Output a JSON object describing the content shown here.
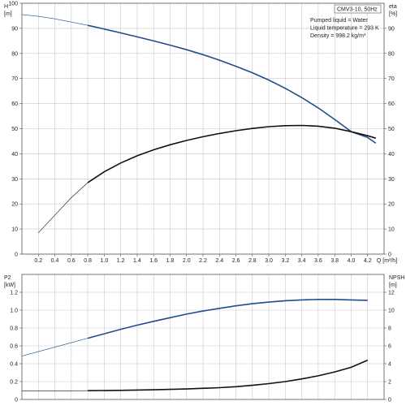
{
  "chart_data": [
    {
      "type": "line",
      "title": "",
      "xlabel": "Q [m³/h]",
      "ylabel": "H\n[m]",
      "ylabel_right": "eta\n[%]",
      "xlim": [
        0,
        4.4
      ],
      "ylim": [
        0,
        100
      ],
      "ylim_right": [
        0,
        100
      ],
      "x_ticks": [
        "0.2",
        "0.4",
        "0.6",
        "0.8",
        "1.0",
        "1.2",
        "1.4",
        "1.6",
        "1.8",
        "2.0",
        "2.2",
        "2.4",
        "2.6",
        "2.8",
        "3.0",
        "3.2",
        "3.4",
        "3.6",
        "3.8",
        "4.0",
        "4.2"
      ],
      "y_ticks": [
        "0",
        "10",
        "20",
        "30",
        "40",
        "50",
        "60",
        "70",
        "80",
        "90",
        "100"
      ],
      "y_ticks_right": [
        "0",
        "10",
        "20",
        "30",
        "40",
        "50",
        "60",
        "70",
        "80",
        "90"
      ],
      "grid": true,
      "info_box": {
        "title": "CMV3-10, 50Hz",
        "lines": [
          "Pumped liquid = Water",
          "Liquid temperature = 293 K",
          "Density = 998.2 kg/m³"
        ]
      },
      "series": [
        {
          "id": "H",
          "axis": "left",
          "color": "#1f4e8c",
          "x": [
            0.0,
            0.2,
            0.4,
            0.6,
            0.8,
            1.0,
            1.2,
            1.4,
            1.6,
            1.8,
            2.0,
            2.2,
            2.4,
            2.6,
            2.8,
            3.0,
            3.2,
            3.4,
            3.6,
            3.8,
            4.0,
            4.2,
            4.3
          ],
          "y": [
            95.5,
            94.8,
            93.8,
            92.5,
            91.2,
            89.7,
            88.2,
            86.6,
            85.0,
            83.3,
            81.5,
            79.5,
            77.3,
            74.9,
            72.3,
            69.4,
            66.1,
            62.4,
            58.3,
            53.7,
            48.8,
            46.5,
            44.2
          ],
          "thin_until_x": 0.8
        },
        {
          "id": "eta",
          "axis": "right",
          "color": "#111111",
          "x": [
            0.2,
            0.4,
            0.6,
            0.8,
            1.0,
            1.2,
            1.4,
            1.6,
            1.8,
            2.0,
            2.2,
            2.4,
            2.6,
            2.8,
            3.0,
            3.2,
            3.4,
            3.6,
            3.8,
            4.0,
            4.2,
            4.3
          ],
          "y": [
            8.5,
            15.5,
            22.5,
            28.5,
            32.8,
            36.3,
            39.2,
            41.6,
            43.6,
            45.3,
            46.8,
            48.1,
            49.2,
            50.1,
            50.8,
            51.2,
            51.3,
            51.0,
            50.2,
            48.8,
            47.2,
            46.2
          ],
          "thin_until_x": 0.8
        }
      ]
    },
    {
      "type": "line",
      "title": "",
      "xlabel": "",
      "ylabel": "P2\n[kW]",
      "ylabel_right": "NPSH\n[m]",
      "xlim": [
        0,
        4.4
      ],
      "ylim": [
        0,
        1.4
      ],
      "ylim_right": [
        0,
        14
      ],
      "y_ticks": [
        "0",
        "0.2",
        "0.4",
        "0.6",
        "0.8",
        "1.0",
        "1.2"
      ],
      "y_ticks_right": [
        "0",
        "2",
        "4",
        "6",
        "8",
        "10",
        "12"
      ],
      "grid": true,
      "series": [
        {
          "id": "P2",
          "axis": "left",
          "color": "#1f4e8c",
          "x": [
            0.0,
            0.2,
            0.4,
            0.6,
            0.8,
            1.0,
            1.2,
            1.4,
            1.6,
            1.8,
            2.0,
            2.2,
            2.4,
            2.6,
            2.8,
            3.0,
            3.2,
            3.4,
            3.6,
            3.8,
            4.0,
            4.2
          ],
          "y": [
            0.485,
            0.535,
            0.585,
            0.635,
            0.685,
            0.735,
            0.785,
            0.832,
            0.875,
            0.915,
            0.955,
            0.99,
            1.02,
            1.048,
            1.072,
            1.09,
            1.105,
            1.115,
            1.12,
            1.12,
            1.115,
            1.11
          ],
          "thin_until_x": 0.8
        },
        {
          "id": "NPSH",
          "axis": "right",
          "color": "#111111",
          "x": [
            0.0,
            0.4,
            0.8,
            1.2,
            1.6,
            2.0,
            2.4,
            2.6,
            2.8,
            3.0,
            3.2,
            3.4,
            3.6,
            3.8,
            4.0,
            4.2
          ],
          "y": [
            0.95,
            0.96,
            0.98,
            1.02,
            1.08,
            1.17,
            1.32,
            1.43,
            1.58,
            1.77,
            2.0,
            2.3,
            2.65,
            3.08,
            3.6,
            4.4
          ],
          "thin_until_x": 0.8
        }
      ]
    }
  ]
}
